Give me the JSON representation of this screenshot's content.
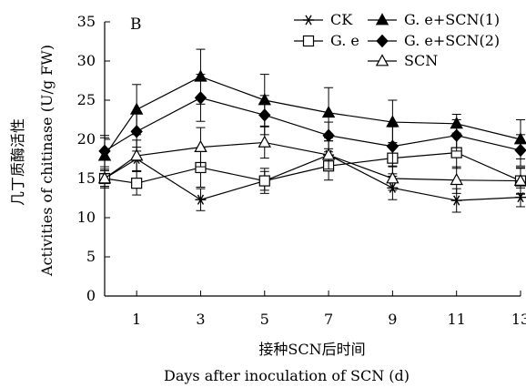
{
  "chart_data": {
    "type": "line",
    "panel_label": "B",
    "x": [
      0,
      1,
      3,
      5,
      7,
      9,
      11,
      13
    ],
    "x_tick_labels": [
      "1",
      "3",
      "5",
      "7",
      "9",
      "11",
      "13"
    ],
    "xlim": [
      0,
      13
    ],
    "ylim": [
      0,
      35
    ],
    "y_ticks": [
      0,
      5,
      10,
      15,
      20,
      25,
      30,
      35
    ],
    "xlabel_zh": "接种SCN后时间",
    "xlabel_en": "Days after inoculation of SCN (d)",
    "ylabel_zh": "几丁质酶活性",
    "ylabel_en": "Activities of  chitinase (U/g FW)",
    "grid": false,
    "legend_position": "top-right",
    "series": [
      {
        "name": "CK",
        "marker": "star",
        "values": [
          15.0,
          17.5,
          12.3,
          14.7,
          18.0,
          13.8,
          12.2,
          12.6
        ],
        "errors": [
          1.0,
          1.5,
          1.4,
          1.2,
          1.8,
          1.5,
          1.5,
          1.2
        ]
      },
      {
        "name": "G. e",
        "marker": "square",
        "values": [
          15.0,
          14.4,
          16.4,
          14.7,
          16.6,
          17.6,
          18.3,
          14.7
        ],
        "errors": [
          1.2,
          1.5,
          2.5,
          1.6,
          1.8,
          2.0,
          2.0,
          1.6
        ]
      },
      {
        "name": "SCN",
        "marker": "triangle-open",
        "values": [
          15.0,
          17.9,
          19.0,
          19.6,
          18.0,
          15.0,
          14.8,
          14.7
        ],
        "errors": [
          1.0,
          2.0,
          2.5,
          2.0,
          1.8,
          1.5,
          1.7,
          1.7
        ]
      },
      {
        "name": "G. e+SCN(1)",
        "marker": "triangle-filled",
        "values": [
          17.9,
          23.8,
          28.0,
          25.0,
          23.4,
          22.2,
          22.0,
          20.0
        ],
        "errors": [
          2.3,
          3.2,
          3.5,
          3.3,
          3.2,
          2.8,
          1.2,
          2.5
        ]
      },
      {
        "name": "G. e+SCN(2)",
        "marker": "diamond",
        "values": [
          18.5,
          21.0,
          25.3,
          23.1,
          20.5,
          19.1,
          20.5,
          18.6
        ],
        "errors": [
          2.0,
          2.5,
          3.0,
          2.5,
          1.7,
          2.5,
          2.0,
          2.0
        ]
      }
    ]
  }
}
